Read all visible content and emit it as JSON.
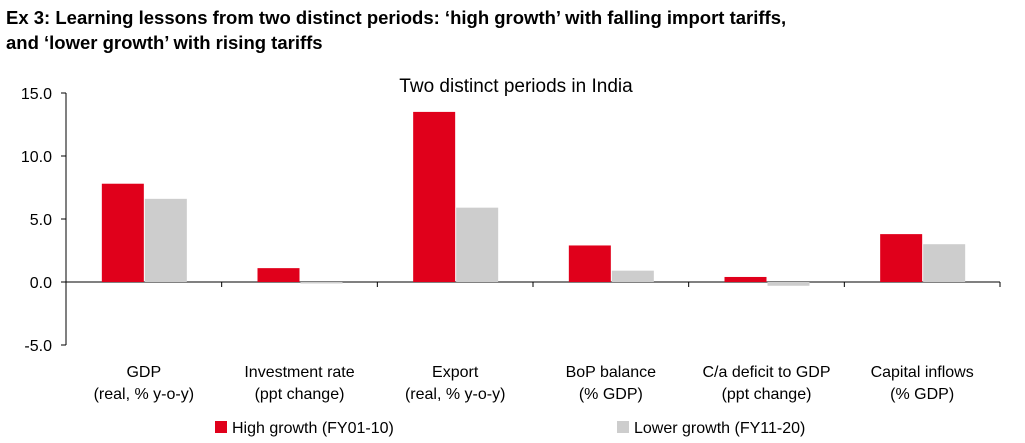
{
  "exhibit_title_line1": "Ex 3: Learning lessons from two distinct periods: ‘high growth’ with falling import tariffs,",
  "exhibit_title_line2": "and ‘lower growth’ with rising tariffs",
  "chart_data": {
    "type": "bar",
    "title": "Two distinct periods in India",
    "categories": [
      [
        "GDP",
        "(real, % y-o-y)"
      ],
      [
        "Investment rate",
        "(ppt change)"
      ],
      [
        "Export",
        "(real, % y-o-y)"
      ],
      [
        "BoP balance",
        "(% GDP)"
      ],
      [
        "C/a deficit to GDP",
        "(ppt change)"
      ],
      [
        "Capital inflows",
        "(% GDP)"
      ]
    ],
    "series": [
      {
        "name": "High growth (FY01-10)",
        "color": "#e0001b",
        "values": [
          7.8,
          1.1,
          13.5,
          2.9,
          0.4,
          3.8
        ]
      },
      {
        "name": "Lower growth (FY11-20)",
        "color": "#cdcdcd",
        "values": [
          6.6,
          -0.1,
          5.9,
          0.9,
          -0.3,
          3.0
        ]
      }
    ],
    "ylim": [
      -5,
      15
    ],
    "yticks": [
      "15.0",
      "10.0",
      "5.0",
      "0.0",
      "-5.0"
    ],
    "ytick_values": [
      15,
      10,
      5,
      0,
      -5
    ],
    "legend_position": "bottom",
    "grid": false
  }
}
